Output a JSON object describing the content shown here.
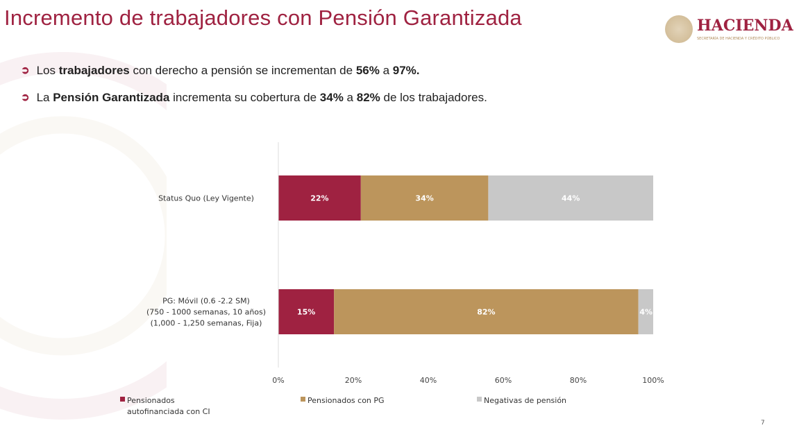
{
  "title": "Incremento de trabajadores con Pensión Garantizada",
  "logo": {
    "name": "HACIENDA",
    "subtitle": "SECRETARÍA DE HACIENDA Y CRÉDITO PÚBLICO"
  },
  "bullets": [
    {
      "icon": "arrow-circle-icon",
      "parts": [
        {
          "t": "Los ",
          "b": false
        },
        {
          "t": "trabajadores",
          "b": true
        },
        {
          "t": " con derecho a pensión se incrementan de ",
          "b": false
        },
        {
          "t": "56%",
          "b": true
        },
        {
          "t": " a ",
          "b": false
        },
        {
          "t": "97%.",
          "b": true
        }
      ]
    },
    {
      "icon": "arrow-circle-icon",
      "parts": [
        {
          "t": "La ",
          "b": false
        },
        {
          "t": "Pensión Garantizada",
          "b": true
        },
        {
          "t": " incrementa su cobertura de ",
          "b": false
        },
        {
          "t": "34%",
          "b": true
        },
        {
          "t": " a ",
          "b": false
        },
        {
          "t": "82%",
          "b": true
        },
        {
          "t": " de los trabajadores.",
          "b": false
        }
      ]
    }
  ],
  "page_number": "7",
  "colors": {
    "accent": "#9f2241",
    "gold": "#bc955c",
    "gray": "#c8c8c8"
  },
  "chart_data": {
    "type": "bar",
    "orientation": "horizontal",
    "stacked": "100%",
    "categories": [
      [
        "Status Quo (Ley Vigente)"
      ],
      [
        "PG: Móvil (0.6 -2.2 SM)",
        "(750 - 1000 semanas, 10 años)",
        "(1,000 - 1,250 semanas, Fija)"
      ]
    ],
    "series": [
      {
        "name": "Pensionados autofinanciada con CI",
        "color": "#9f2241",
        "values": [
          22,
          15
        ],
        "labels": [
          "22%",
          "15%"
        ]
      },
      {
        "name": "Pensionados con PG",
        "color": "#bc955c",
        "values": [
          34,
          82
        ],
        "labels": [
          "34%",
          "82%"
        ]
      },
      {
        "name": "Negativas de pensión",
        "color": "#c8c8c8",
        "values": [
          44,
          4
        ],
        "labels": [
          "44%",
          "4%"
        ]
      }
    ],
    "xlim": [
      0,
      100
    ],
    "xticks": [
      "0%",
      "20%",
      "40%",
      "60%",
      "80%",
      "100%"
    ],
    "grid": false,
    "legend": "bottom"
  }
}
